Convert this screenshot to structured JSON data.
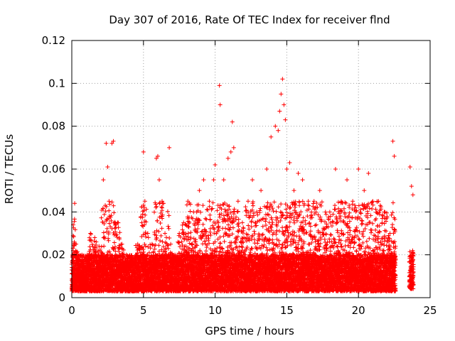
{
  "chart_data": {
    "type": "scatter",
    "title": "Day 307 of 2016, Rate Of TEC Index for receiver flnd",
    "xlabel": "GPS time / hours",
    "ylabel": "ROTI / TECUs",
    "xlim": [
      0,
      25
    ],
    "ylim": [
      0,
      0.12
    ],
    "x_ticks": [
      0,
      5,
      10,
      15,
      20,
      25
    ],
    "x_tick_labels": [
      "0",
      "5",
      "10",
      "15",
      "20",
      "25"
    ],
    "y_ticks": [
      0,
      0.02,
      0.04,
      0.06,
      0.08,
      0.1,
      0.12
    ],
    "y_tick_labels": [
      "0",
      "0.02",
      "0.04",
      "0.06",
      "0.08",
      "0.1",
      "0.12"
    ],
    "grid": true,
    "marker": "+",
    "series": [
      {
        "name": "ROTI",
        "color": "#ff0000",
        "x": [
          0.0,
          0.1,
          0.2,
          0.3,
          0.5,
          0.7,
          1.0,
          1.3,
          1.6,
          1.9,
          2.2,
          2.4,
          2.5,
          2.6,
          2.8,
          2.9,
          3.2,
          3.5,
          3.8,
          4.2,
          4.6,
          5.0,
          5.1,
          5.3,
          5.6,
          5.9,
          6.0,
          6.1,
          6.3,
          6.5,
          6.8,
          6.9,
          7.2,
          7.5,
          7.8,
          8.1,
          8.5,
          8.9,
          9.2,
          9.6,
          9.9,
          10.0,
          10.3,
          10.35,
          10.6,
          10.9,
          11.1,
          11.2,
          11.3,
          11.6,
          11.9,
          12.3,
          12.6,
          12.9,
          13.2,
          13.6,
          13.9,
          14.2,
          14.4,
          14.5,
          14.6,
          14.7,
          14.8,
          14.9,
          15.0,
          15.2,
          15.5,
          15.8,
          16.1,
          16.5,
          16.9,
          17.3,
          17.7,
          18.0,
          18.4,
          18.8,
          19.2,
          19.6,
          20.0,
          20.4,
          20.7,
          21.0,
          21.4,
          21.8,
          22.2,
          22.4,
          22.5,
          23.6,
          23.7,
          23.8
        ],
        "y": [
          0.008,
          0.034,
          0.044,
          0.025,
          0.018,
          0.015,
          0.012,
          0.03,
          0.028,
          0.024,
          0.055,
          0.072,
          0.061,
          0.045,
          0.072,
          0.073,
          0.035,
          0.025,
          0.02,
          0.018,
          0.025,
          0.068,
          0.045,
          0.03,
          0.025,
          0.065,
          0.066,
          0.055,
          0.045,
          0.03,
          0.07,
          0.025,
          0.02,
          0.03,
          0.035,
          0.045,
          0.04,
          0.05,
          0.055,
          0.045,
          0.055,
          0.062,
          0.099,
          0.09,
          0.055,
          0.065,
          0.068,
          0.082,
          0.07,
          0.045,
          0.035,
          0.045,
          0.055,
          0.04,
          0.05,
          0.06,
          0.075,
          0.08,
          0.078,
          0.087,
          0.095,
          0.102,
          0.09,
          0.083,
          0.06,
          0.063,
          0.05,
          0.058,
          0.055,
          0.045,
          0.045,
          0.05,
          0.04,
          0.04,
          0.06,
          0.045,
          0.055,
          0.045,
          0.06,
          0.05,
          0.058,
          0.045,
          0.045,
          0.04,
          0.03,
          0.073,
          0.066,
          0.061,
          0.052,
          0.048
        ],
        "baseline_range": [
          0.003,
          0.02
        ]
      }
    ]
  }
}
